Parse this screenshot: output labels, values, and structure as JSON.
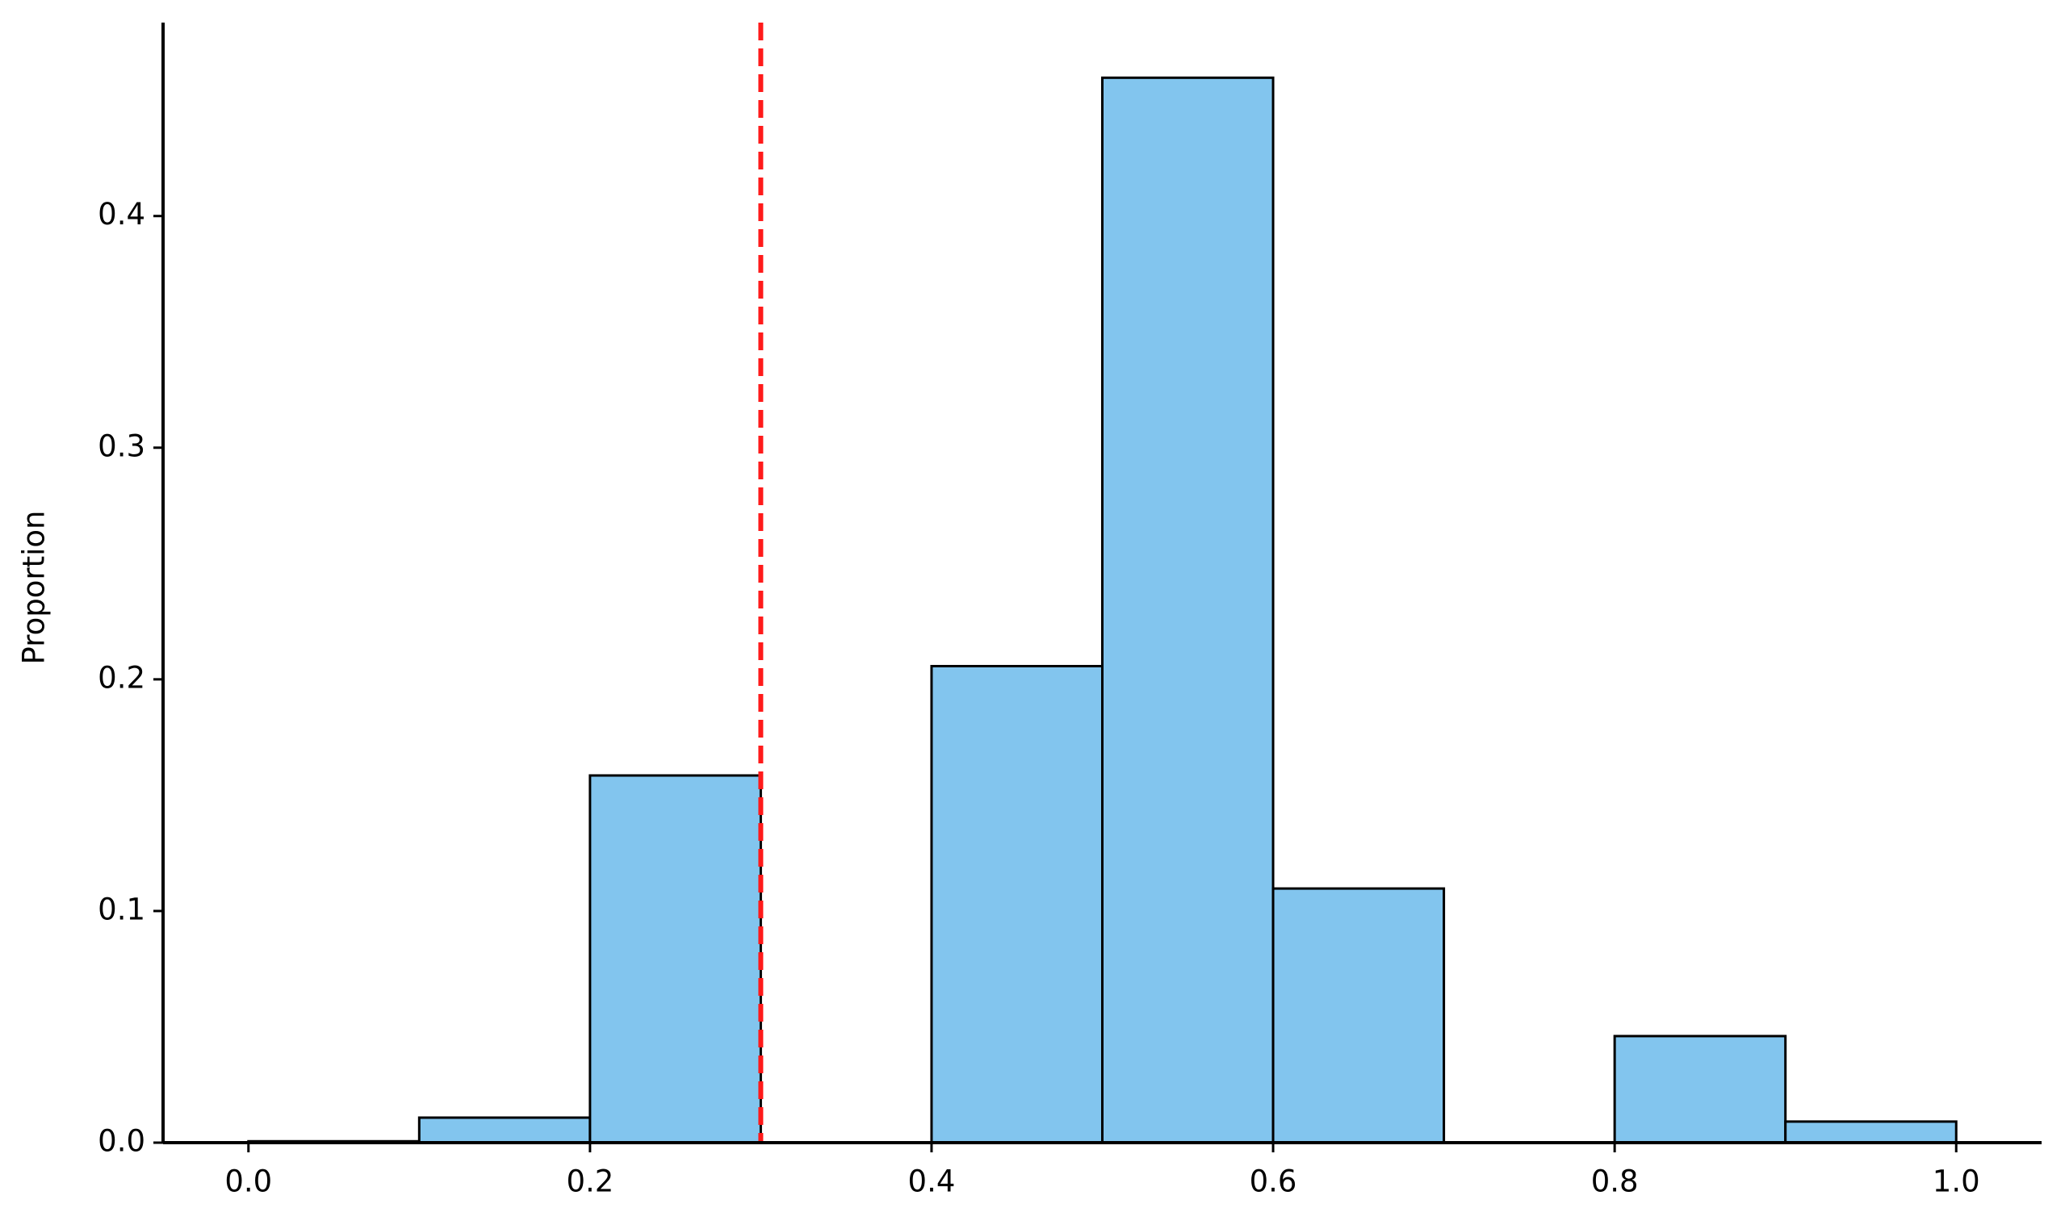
{
  "chart_data": {
    "type": "histogram",
    "ylabel": "Proportion",
    "bins": [
      0,
      0.1,
      0.2,
      0.3,
      0.4,
      0.5,
      0.6,
      0.7,
      0.8,
      0.9,
      1.0
    ],
    "values": [
      0.0006,
      0.0108,
      0.1585,
      0,
      0.2057,
      0.4597,
      0.1097,
      0,
      0.046,
      0.0091
    ],
    "color": "#82c5ee",
    "edgecolor": "#000000",
    "vline": {
      "x": 0.3,
      "color": "#ff1a1a",
      "style": "dashed"
    },
    "xlim": [
      -0.05,
      1.05
    ],
    "ylim": [
      0,
      0.4835
    ],
    "xticks": [
      {
        "value": 0,
        "label": "0.0"
      },
      0.2,
      0.4,
      0.6,
      0.8,
      {
        "value": 1.0,
        "label": "1.0"
      }
    ],
    "yticks": [
      {
        "value": 0,
        "label": "0.0"
      },
      0.1,
      0.2,
      0.3,
      0.4
    ],
    "grid": false
  }
}
